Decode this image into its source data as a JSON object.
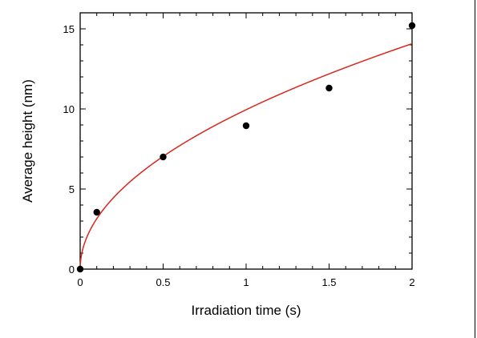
{
  "chart_data": {
    "type": "scatter",
    "title": "",
    "xlabel": "Irradiation time (s)",
    "ylabel": "Average height (nm)",
    "xlim": [
      0,
      2
    ],
    "ylim": [
      0,
      16
    ],
    "x_ticks": [
      0,
      0.5,
      1,
      1.5,
      2
    ],
    "x_tick_labels": [
      "0",
      "0.5",
      "1",
      "1.5",
      "2"
    ],
    "y_ticks": [
      0,
      5,
      10,
      15
    ],
    "y_tick_labels": [
      "0",
      "5",
      "10",
      "15"
    ],
    "grid": false,
    "series": [
      {
        "kind": "points",
        "color": "#000000",
        "x": [
          0,
          0.1,
          0.5,
          1.0,
          1.5,
          2.0
        ],
        "y": [
          0,
          3.55,
          7.0,
          8.95,
          11.3,
          15.2
        ]
      },
      {
        "kind": "fit-curve",
        "color": "#d9261c",
        "model": "y = a * x^b",
        "a": 9.95,
        "b": 0.5
      }
    ]
  }
}
